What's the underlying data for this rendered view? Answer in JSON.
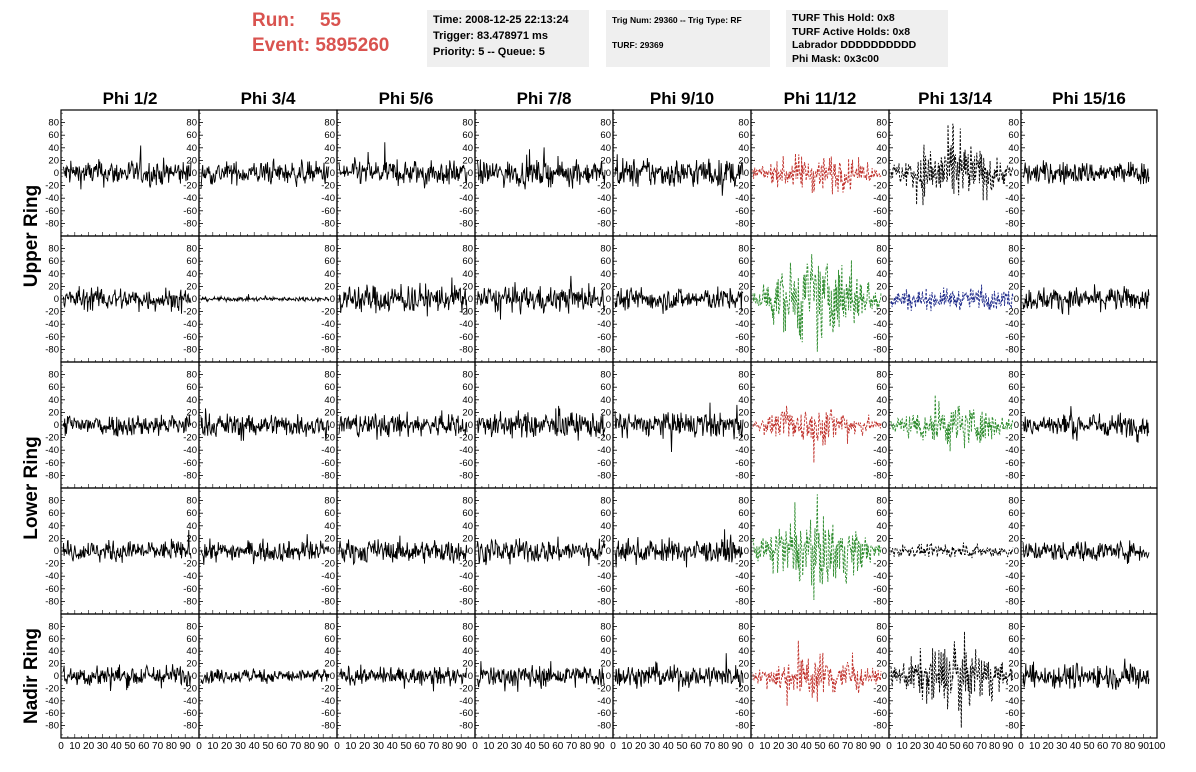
{
  "header": {
    "run_label": "Run:",
    "run_value": "55",
    "event_label": "Event:",
    "event_value": "5895260",
    "time_text": "Time: 2008-12-25 22:13:24",
    "trigger_text": "Trigger: 83.478971 ms",
    "priority_text": "Priority: 5 -- Queue: 5",
    "trig_num_text": "Trig Num: 29360 -- Trig Type: RF",
    "turf_text": "TURF: 29369",
    "turf_hold_text": "TURF This Hold: 0x8",
    "turf_active_text": "TURF Active Holds: 0x8",
    "labrador_text": "Labrador DDDDDDDDDD",
    "phi_mask_text": "Phi Mask: 0x3c00"
  },
  "chart_data": {
    "type": "line",
    "column_titles": [
      "Phi 1/2",
      "Phi 3/4",
      "Phi 5/6",
      "Phi 7/8",
      "Phi 9/10",
      "Phi 11/12",
      "Phi 13/14",
      "Phi 15/16"
    ],
    "ring_labels": [
      {
        "label": "Upper Ring",
        "rows": [
          0,
          1
        ]
      },
      {
        "label": "Lower Ring",
        "rows": [
          2,
          3
        ]
      },
      {
        "label": "Nadir Ring",
        "rows": [
          4,
          4
        ]
      }
    ],
    "xlim": [
      0,
      100
    ],
    "ylim": [
      -100,
      100
    ],
    "y_ticks": [
      -80,
      -60,
      -40,
      -20,
      0,
      20,
      40,
      60,
      80
    ],
    "x_tick_labels": [
      "0",
      "10",
      "20",
      "30",
      "40",
      "50",
      "60",
      "70",
      "80",
      "90",
      "100"
    ],
    "colors": {
      "black": "#000000",
      "red": "#c0302a",
      "green": "#2a8a2a",
      "blue": "#1e2a8a"
    },
    "panel_styles": [
      [
        [
          "black",
          "solid",
          18
        ],
        [
          "black",
          "solid",
          16
        ],
        [
          "black",
          "solid",
          18
        ],
        [
          "black",
          "solid",
          18
        ],
        [
          "black",
          "solid",
          20
        ],
        [
          "red",
          "dashed",
          22
        ],
        [
          "black",
          "dashed",
          38
        ],
        [
          "black",
          "solid",
          16
        ]
      ],
      [
        [
          "black",
          "solid",
          16
        ],
        [
          "black",
          "solid",
          3
        ],
        [
          "black",
          "solid",
          20
        ],
        [
          "black",
          "solid",
          18
        ],
        [
          "black",
          "solid",
          16
        ],
        [
          "green",
          "dashed",
          48
        ],
        [
          "blue",
          "dashed",
          14
        ],
        [
          "black",
          "solid",
          16
        ]
      ],
      [
        [
          "black",
          "solid",
          16
        ],
        [
          "black",
          "solid",
          16
        ],
        [
          "black",
          "solid",
          16
        ],
        [
          "black",
          "solid",
          18
        ],
        [
          "black",
          "solid",
          18
        ],
        [
          "red",
          "dashed",
          22
        ],
        [
          "green",
          "dashed",
          26
        ],
        [
          "black",
          "solid",
          16
        ]
      ],
      [
        [
          "black",
          "solid",
          14
        ],
        [
          "black",
          "solid",
          14
        ],
        [
          "black",
          "solid",
          16
        ],
        [
          "black",
          "solid",
          16
        ],
        [
          "black",
          "solid",
          16
        ],
        [
          "green",
          "dashed",
          40
        ],
        [
          "black",
          "dashed",
          8
        ],
        [
          "black",
          "solid",
          14
        ]
      ],
      [
        [
          "black",
          "solid",
          16
        ],
        [
          "black",
          "solid",
          10
        ],
        [
          "black",
          "solid",
          12
        ],
        [
          "black",
          "solid",
          16
        ],
        [
          "black",
          "solid",
          16
        ],
        [
          "red",
          "dashed",
          26
        ],
        [
          "black",
          "dashed",
          38
        ],
        [
          "black",
          "solid",
          18
        ]
      ]
    ]
  }
}
